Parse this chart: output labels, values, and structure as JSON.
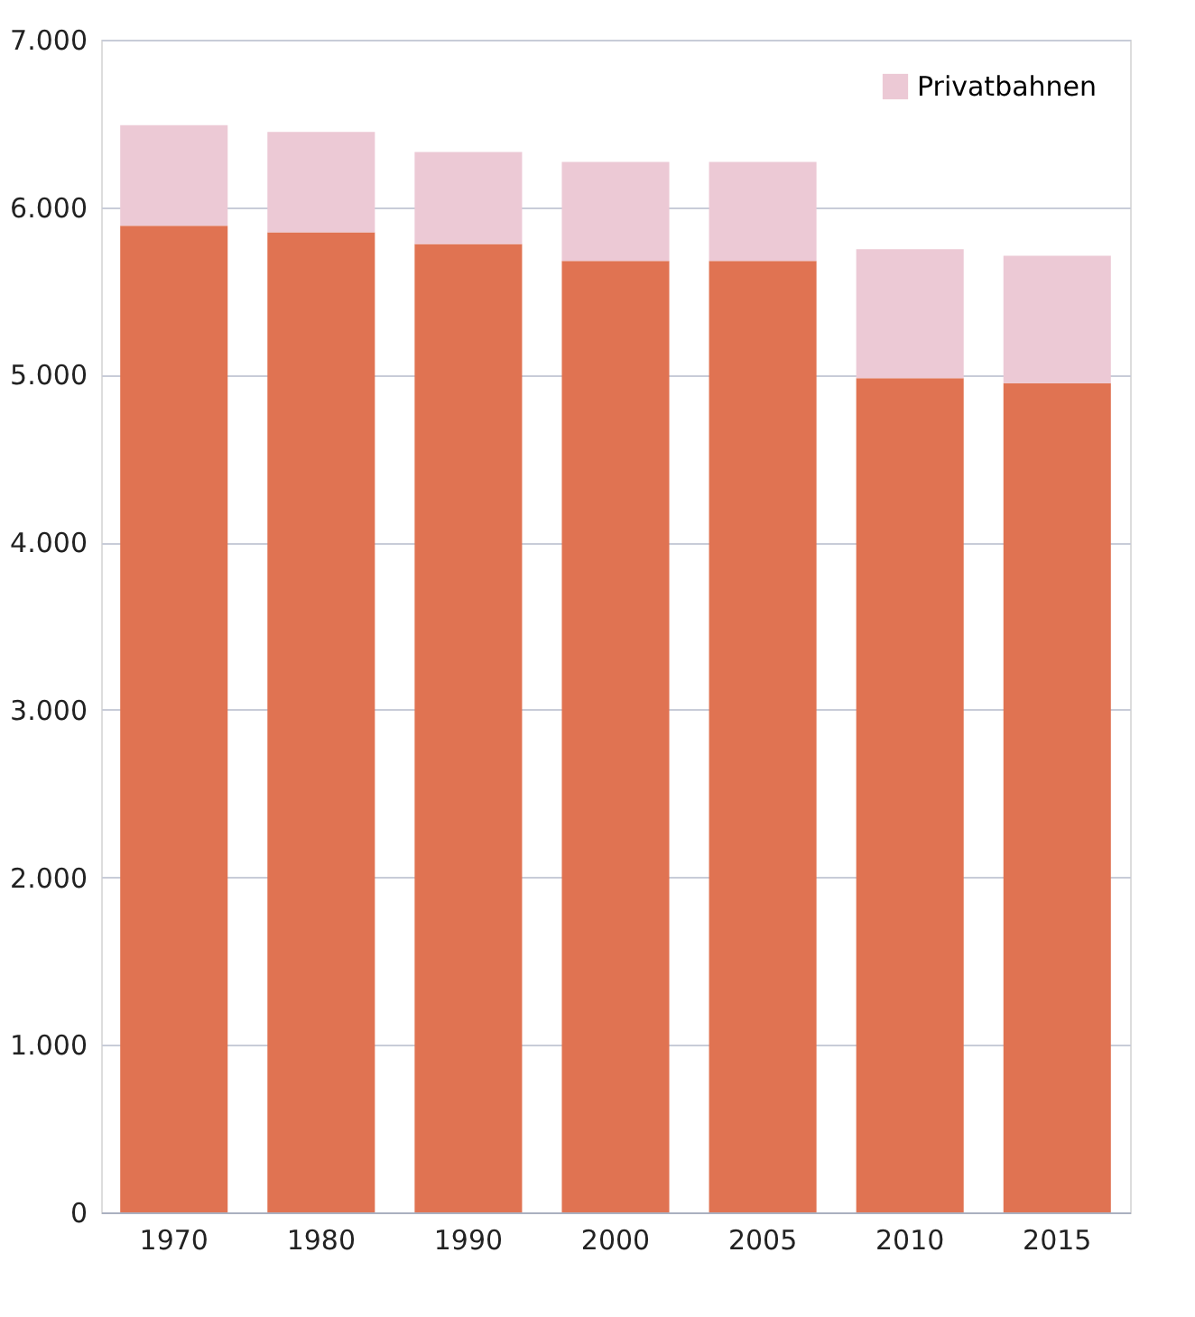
{
  "chart_data": {
    "type": "bar",
    "stacked": true,
    "categories": [
      "1970",
      "1980",
      "1990",
      "2000",
      "2005",
      "2010",
      "2015"
    ],
    "series": [
      {
        "color": "#e07352",
        "values": [
          5890,
          5850,
          5780,
          5680,
          5680,
          4980,
          4950
        ]
      },
      {
        "name": "Privatbahnen",
        "color": "#ecc9d5",
        "values": [
          600,
          600,
          550,
          590,
          590,
          770,
          760
        ]
      }
    ],
    "ylim": [
      0,
      7000
    ],
    "yticks": [
      {
        "value": 0,
        "label": "0"
      },
      {
        "value": 1000,
        "label": "1.000"
      },
      {
        "value": 2000,
        "label": "2.000"
      },
      {
        "value": 3000,
        "label": "3.000"
      },
      {
        "value": 4000,
        "label": "4.000"
      },
      {
        "value": 5000,
        "label": "5.000"
      },
      {
        "value": 6000,
        "label": "6.000"
      },
      {
        "value": 7000,
        "label": "7.000"
      }
    ],
    "grid": "y",
    "legend": "top right"
  }
}
